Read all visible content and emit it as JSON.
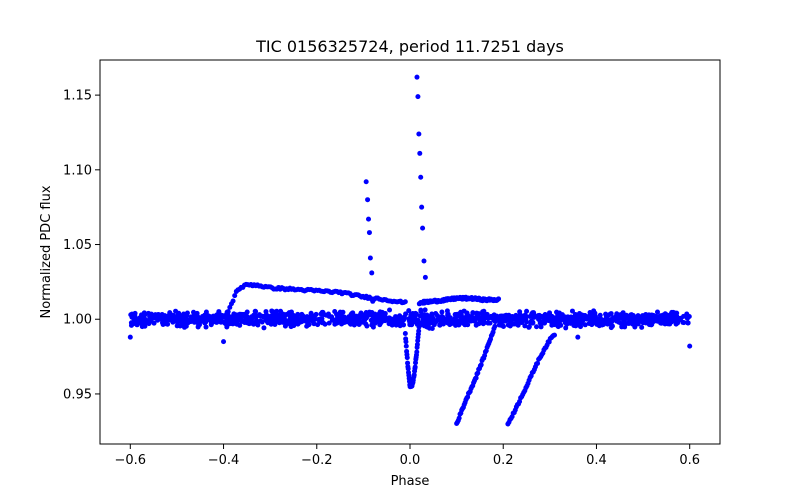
{
  "chart_data": {
    "type": "scatter",
    "title": "TIC 0156325724, period 11.7251 days",
    "xlabel": "Phase",
    "ylabel": "Normalized PDC flux",
    "xlim": [
      -0.665,
      0.665
    ],
    "ylim": [
      0.9165,
      1.1735
    ],
    "xticks": [
      -0.6,
      -0.4,
      -0.2,
      0.0,
      0.2,
      0.4,
      0.6
    ],
    "xtick_labels": [
      "−0.6",
      "−0.4",
      "−0.2",
      "0.0",
      "0.2",
      "0.4",
      "0.6"
    ],
    "yticks": [
      0.95,
      1.0,
      1.05,
      1.1,
      1.15
    ],
    "ytick_labels": [
      "0.95",
      "1.00",
      "1.05",
      "1.10",
      "1.15"
    ],
    "marker_color": "#0000ff",
    "grid": false,
    "series": [
      {
        "name": "baseline",
        "description": "dense scatter around flux 1.00 spanning phase -0.6 to 0.6",
        "x_range": [
          -0.6,
          0.6
        ],
        "y_center": 1.0,
        "y_spread": 0.004
      },
      {
        "name": "plateau-segment-1",
        "x": [
          -0.39,
          -0.37,
          -0.35,
          -0.33,
          -0.3,
          -0.25,
          -0.2,
          -0.15,
          -0.1,
          -0.05,
          -0.01
        ],
        "y": [
          1.005,
          1.02,
          1.023,
          1.023,
          1.021,
          1.02,
          1.019,
          1.018,
          1.015,
          1.013,
          1.011
        ]
      },
      {
        "name": "plateau-segment-2",
        "x": [
          0.02,
          0.05,
          0.08,
          0.1,
          0.13,
          0.16,
          0.19
        ],
        "y": [
          1.011,
          1.012,
          1.013,
          1.014,
          1.014,
          1.013,
          1.013
        ]
      },
      {
        "name": "dip",
        "x": [
          -0.01,
          -0.005,
          0.0,
          0.005,
          0.01,
          0.015,
          0.02
        ],
        "y": [
          0.99,
          0.97,
          0.955,
          0.956,
          0.965,
          0.98,
          0.997
        ]
      },
      {
        "name": "spike-1",
        "x": [
          -0.094,
          -0.091,
          -0.089,
          -0.087,
          -0.085,
          -0.082,
          -0.08
        ],
        "y": [
          1.092,
          1.08,
          1.067,
          1.058,
          1.041,
          1.031,
          1.012
        ]
      },
      {
        "name": "spike-2",
        "x": [
          0.015,
          0.017,
          0.019,
          0.021,
          0.023,
          0.025,
          0.027,
          0.03,
          0.033
        ],
        "y": [
          1.162,
          1.149,
          1.124,
          1.111,
          1.095,
          1.075,
          1.061,
          1.039,
          1.028
        ]
      },
      {
        "name": "ramp-1",
        "x": [
          0.1,
          0.11,
          0.12,
          0.13,
          0.14,
          0.15,
          0.16,
          0.17,
          0.18
        ],
        "y": [
          0.93,
          0.938,
          0.946,
          0.953,
          0.96,
          0.968,
          0.976,
          0.985,
          0.993
        ]
      },
      {
        "name": "ramp-2",
        "x": [
          0.21,
          0.22,
          0.23,
          0.24,
          0.25,
          0.26,
          0.27,
          0.28,
          0.29,
          0.3,
          0.31
        ],
        "y": [
          0.93,
          0.936,
          0.942,
          0.949,
          0.955,
          0.962,
          0.969,
          0.975,
          0.981,
          0.986,
          0.99
        ]
      },
      {
        "name": "small-dips",
        "x": [
          -0.6,
          -0.4,
          0.36,
          0.6
        ],
        "y": [
          0.988,
          0.985,
          0.988,
          0.982
        ]
      }
    ]
  }
}
